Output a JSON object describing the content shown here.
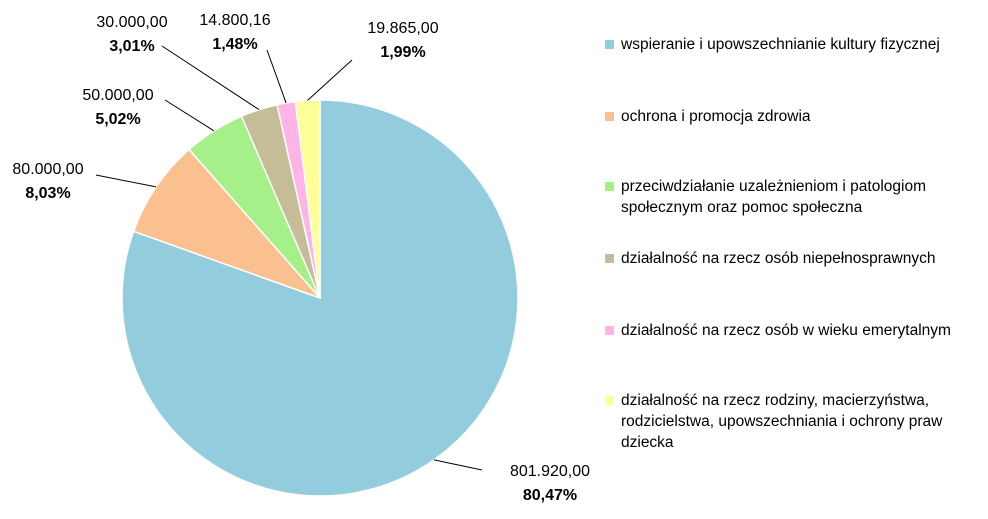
{
  "chart_data": {
    "type": "pie",
    "slices": [
      {
        "label": "wspieranie i upowszechnianie kultury fizycznej",
        "value": 801920.0,
        "value_label": "801.920,00",
        "percent_label": "80,47%",
        "color": "#93CDDD"
      },
      {
        "label": "ochrona i promocja zdrowia",
        "value": 80000.0,
        "value_label": "80.000,00",
        "percent_label": "8,03%",
        "color": "#FAC090"
      },
      {
        "label": "przeciwdziałanie uzależnieniom i patologiom społecznym oraz pomoc społeczna",
        "value": 50000.0,
        "value_label": "50.000,00",
        "percent_label": "5,02%",
        "color": "#A6F08A"
      },
      {
        "label": "działalność na rzecz osób niepełnosprawnych",
        "value": 30000.0,
        "value_label": "30.000,00",
        "percent_label": "3,01%",
        "color": "#C4BD97"
      },
      {
        "label": "działalność na rzecz osób w wieku emerytalnym",
        "value": 14800.16,
        "value_label": "14.800,16",
        "percent_label": "1,48%",
        "color": "#FFB3E6"
      },
      {
        "label": "działalność na rzecz rodziny, macierzyństwa, rodzicielstwa, upowszechniania i ochrony praw dziecka",
        "value": 19865.0,
        "value_label": "19.865,00",
        "percent_label": "1,99%",
        "color": "#FFFF99"
      }
    ],
    "legend_position": "right",
    "start_angle": "12 o'clock",
    "direction": "clockwise"
  }
}
